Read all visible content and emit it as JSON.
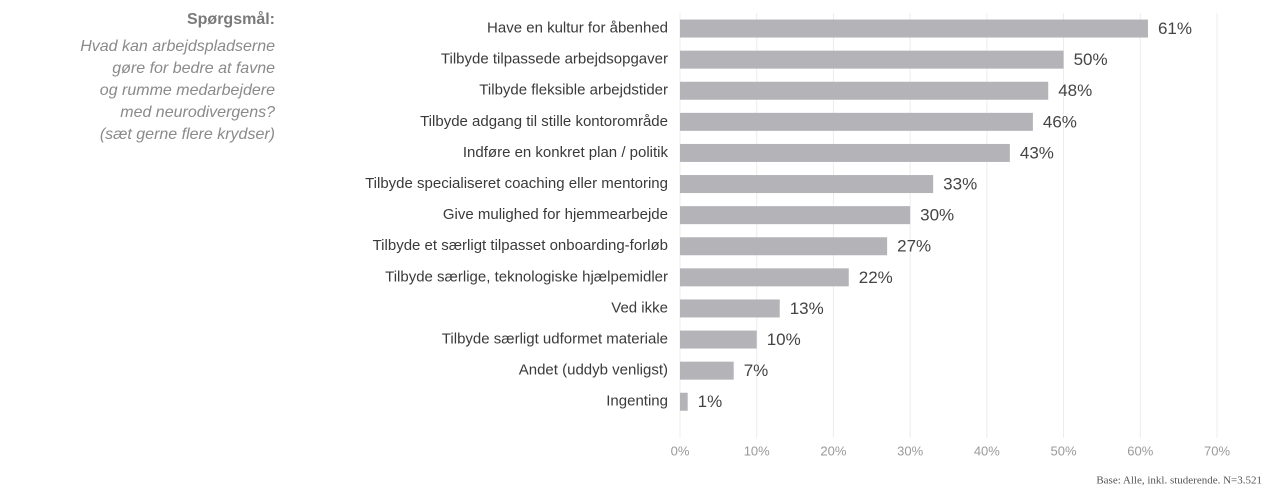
{
  "chart_data": {
    "type": "bar",
    "orientation": "horizontal",
    "title": "Spørgsmål:",
    "subtitle": [
      "Hvad kan arbejdspladserne",
      "gøre for bedre at favne",
      "og rumme medarbejdere",
      "med neurodivergens?",
      "(sæt gerne flere krydser)"
    ],
    "categories": [
      "Have en kultur for åbenhed",
      "Tilbyde tilpassede arbejdsopgaver",
      "Tilbyde fleksible arbejdstider",
      "Tilbyde adgang til stille kontorområde",
      "Indføre en konkret plan / politik",
      "Tilbyde specialiseret coaching eller mentoring",
      "Give mulighed for hjemmearbejde",
      "Tilbyde et særligt tilpasset onboarding-forløb",
      "Tilbyde særlige, teknologiske hjælpemidler",
      "Ved ikke",
      "Tilbyde særligt udformet materiale",
      "Andet (uddyb venligst)",
      "Ingenting"
    ],
    "values": [
      61,
      50,
      48,
      46,
      43,
      33,
      30,
      27,
      22,
      13,
      10,
      7,
      1
    ],
    "value_labels": [
      "61%",
      "50%",
      "48%",
      "46%",
      "43%",
      "33%",
      "30%",
      "27%",
      "22%",
      "13%",
      "10%",
      "7%",
      "1%"
    ],
    "color": "#b4b3b8",
    "xlim": [
      0,
      70
    ],
    "xticks": [
      {
        "value": 0,
        "label": "0%"
      },
      {
        "value": 10,
        "label": "10%"
      },
      {
        "value": 20,
        "label": "20%"
      },
      {
        "value": 30,
        "label": "30%"
      },
      {
        "value": 40,
        "label": "40%"
      },
      {
        "value": 50,
        "label": "50%"
      },
      {
        "value": 60,
        "label": "60%"
      },
      {
        "value": 70,
        "label": "70%"
      }
    ],
    "grid": true,
    "note": "Base: Alle, inkl. studerende. N=3.521"
  }
}
